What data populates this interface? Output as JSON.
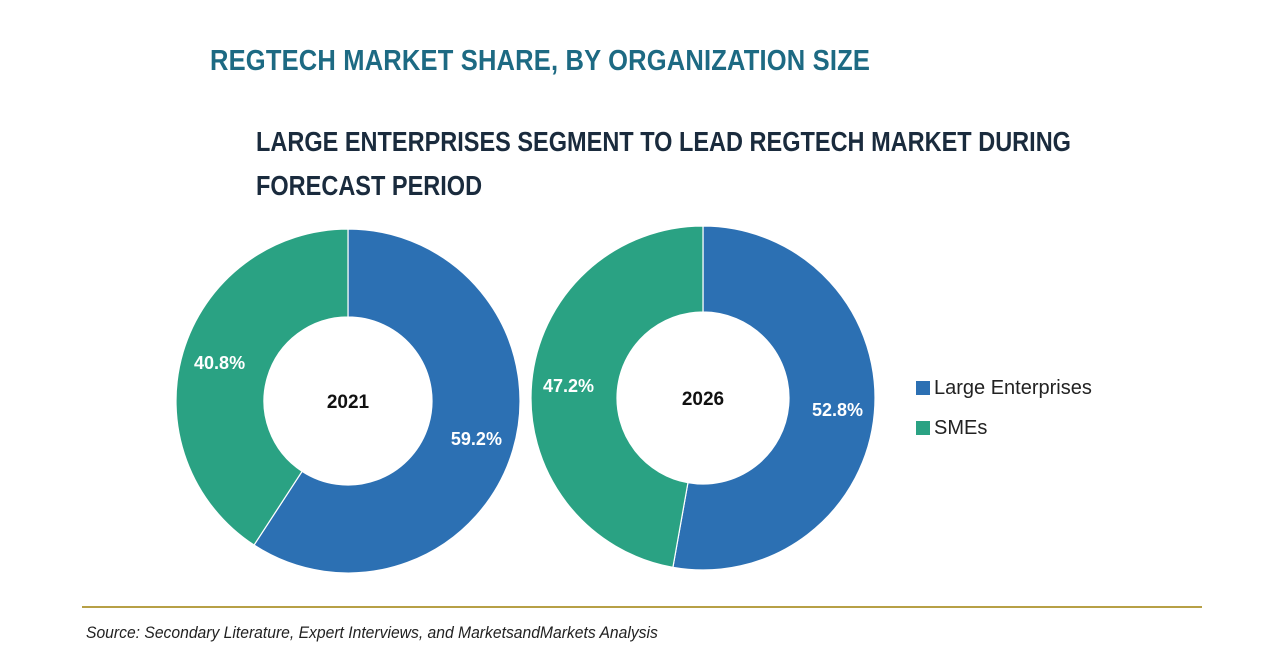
{
  "chart_data": {
    "type": "pie",
    "variant": "donut",
    "title": "REGTECH MARKET SHARE, BY ORGANIZATION SIZE",
    "subtitle": "LARGE ENTERPRISES SEGMENT TO LEAD REGTECH MARKET DURING FORECAST PERIOD",
    "legend_position": "right",
    "categories": [
      "Large Enterprises",
      "SMEs"
    ],
    "colors": {
      "Large Enterprises": "#2c70b3",
      "SMEs": "#2aa283"
    },
    "charts": [
      {
        "center_label": "2021",
        "slices": [
          {
            "name": "Large Enterprises",
            "value": 59.2,
            "label": "59.2%"
          },
          {
            "name": "SMEs",
            "value": 40.8,
            "label": "40.8%"
          }
        ]
      },
      {
        "center_label": "2026",
        "slices": [
          {
            "name": "Large Enterprises",
            "value": 52.8,
            "label": "52.8%"
          },
          {
            "name": "SMEs",
            "value": 47.2,
            "label": "47.2%"
          }
        ]
      }
    ],
    "source": "Source: Secondary Literature, Expert Interviews, and MarketsandMarkets Analysis"
  }
}
